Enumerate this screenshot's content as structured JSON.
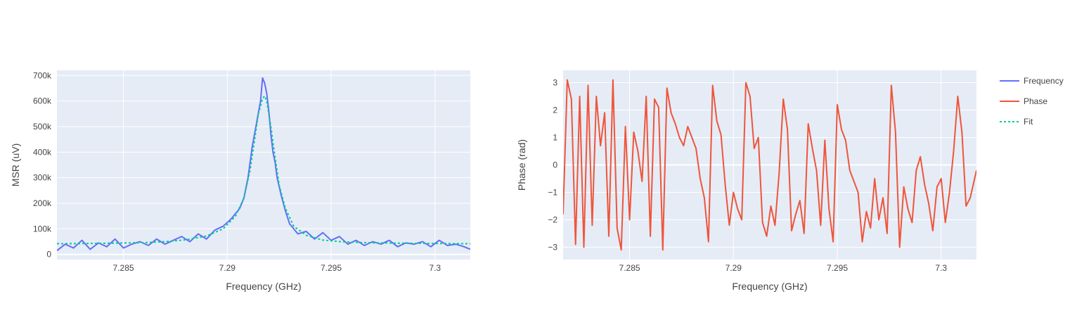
{
  "colors": {
    "plot_bg": "#e5ecf6",
    "grid": "#ffffff",
    "frequency": "#636efa",
    "phase": "#ef553b",
    "fit": "#00cc96",
    "text": "#444444"
  },
  "legend": {
    "placement": "top-right",
    "items": [
      {
        "label": "Frequency",
        "style": "solid",
        "color": "#636efa"
      },
      {
        "label": "Phase",
        "style": "solid",
        "color": "#ef553b"
      },
      {
        "label": "Fit",
        "style": "dotted",
        "color": "#00cc96"
      }
    ]
  },
  "chart_data": [
    {
      "type": "line",
      "xlabel": "Frequency (GHz)",
      "ylabel": "MSR (uV)",
      "xlim": [
        7.2818,
        7.3017
      ],
      "ylim": [
        -20000,
        720000
      ],
      "x_ticks": [
        7.285,
        7.29,
        7.295,
        7.3
      ],
      "x_tick_labels": [
        "7.285",
        "7.29",
        "7.295",
        "7.3"
      ],
      "y_ticks": [
        0,
        100000,
        200000,
        300000,
        400000,
        500000,
        600000,
        700000
      ],
      "y_tick_labels": [
        "0",
        "100k",
        "200k",
        "300k",
        "400k",
        "500k",
        "600k",
        "700k"
      ],
      "grid": true,
      "series": [
        {
          "name": "Frequency",
          "color": "#636efa",
          "x": [
            7.2818,
            7.2822,
            7.2826,
            7.283,
            7.2834,
            7.2838,
            7.2842,
            7.2846,
            7.285,
            7.2854,
            7.2858,
            7.2862,
            7.2866,
            7.287,
            7.2874,
            7.2878,
            7.2882,
            7.2886,
            7.289,
            7.2894,
            7.2898,
            7.2902,
            7.2906,
            7.2908,
            7.291,
            7.2912,
            7.2914,
            7.2916,
            7.2917,
            7.2918,
            7.2919,
            7.292,
            7.2921,
            7.2922,
            7.2923,
            7.2924,
            7.2926,
            7.2928,
            7.293,
            7.2934,
            7.2938,
            7.2942,
            7.2946,
            7.295,
            7.2954,
            7.2958,
            7.2962,
            7.2966,
            7.297,
            7.2974,
            7.2978,
            7.2982,
            7.2986,
            7.299,
            7.2994,
            7.2998,
            7.3002,
            7.3006,
            7.301,
            7.3014,
            7.3017
          ],
          "y": [
            15000,
            40000,
            25000,
            55000,
            20000,
            45000,
            30000,
            60000,
            25000,
            40000,
            50000,
            35000,
            60000,
            40000,
            55000,
            70000,
            50000,
            80000,
            60000,
            95000,
            110000,
            140000,
            180000,
            220000,
            300000,
            420000,
            510000,
            600000,
            690000,
            670000,
            630000,
            560000,
            470000,
            400000,
            360000,
            300000,
            230000,
            170000,
            120000,
            80000,
            90000,
            60000,
            85000,
            55000,
            70000,
            40000,
            55000,
            35000,
            50000,
            40000,
            55000,
            30000,
            45000,
            40000,
            50000,
            30000,
            55000,
            35000,
            40000,
            30000,
            20000
          ]
        },
        {
          "name": "Fit",
          "color": "#00cc96",
          "style": "dotted",
          "x": [
            7.2818,
            7.283,
            7.2845,
            7.286,
            7.287,
            7.288,
            7.289,
            7.2898,
            7.2904,
            7.2908,
            7.2911,
            7.2913,
            7.2915,
            7.2917,
            7.2918,
            7.2919,
            7.2921,
            7.2923,
            7.2925,
            7.2928,
            7.2932,
            7.2938,
            7.2946,
            7.2956,
            7.2966,
            7.298,
            7.2995,
            7.3005,
            7.3017
          ],
          "y": [
            42000,
            42500,
            44000,
            46000,
            50000,
            57000,
            72000,
            100000,
            150000,
            220000,
            330000,
            440000,
            550000,
            610000,
            620000,
            600000,
            500000,
            380000,
            270000,
            180000,
            110000,
            75000,
            56000,
            49000,
            46000,
            44000,
            43000,
            42500,
            42000
          ]
        }
      ]
    },
    {
      "type": "line",
      "xlabel": "Frequency (GHz)",
      "ylabel": "Phase (rad)",
      "xlim": [
        7.2818,
        7.3017
      ],
      "ylim": [
        -3.45,
        3.45
      ],
      "x_ticks": [
        7.285,
        7.29,
        7.295,
        7.3
      ],
      "x_tick_labels": [
        "7.285",
        "7.29",
        "7.295",
        "7.3"
      ],
      "y_ticks": [
        -3,
        -2,
        -1,
        0,
        1,
        2,
        3
      ],
      "y_tick_labels": [
        "−3",
        "−2",
        "−1",
        "0",
        "1",
        "2",
        "3"
      ],
      "grid": true,
      "series": [
        {
          "name": "Phase",
          "color": "#ef553b",
          "x": [
            7.2818,
            7.282,
            7.2822,
            7.2824,
            7.2826,
            7.2828,
            7.283,
            7.2832,
            7.2834,
            7.2836,
            7.2838,
            7.284,
            7.2842,
            7.2844,
            7.2846,
            7.2848,
            7.285,
            7.2852,
            7.2854,
            7.2856,
            7.2858,
            7.286,
            7.2862,
            7.2864,
            7.2866,
            7.2868,
            7.287,
            7.2872,
            7.2874,
            7.2876,
            7.2878,
            7.288,
            7.2882,
            7.2884,
            7.2886,
            7.2888,
            7.289,
            7.2892,
            7.2894,
            7.2896,
            7.2898,
            7.29,
            7.2902,
            7.2904,
            7.2906,
            7.2908,
            7.291,
            7.2912,
            7.2914,
            7.2916,
            7.2918,
            7.292,
            7.2922,
            7.2924,
            7.2926,
            7.2928,
            7.293,
            7.2932,
            7.2934,
            7.2936,
            7.2938,
            7.294,
            7.2942,
            7.2944,
            7.2946,
            7.2948,
            7.295,
            7.2952,
            7.2954,
            7.2956,
            7.2958,
            7.296,
            7.2962,
            7.2964,
            7.2966,
            7.2968,
            7.297,
            7.2972,
            7.2974,
            7.2976,
            7.2978,
            7.298,
            7.2982,
            7.2984,
            7.2986,
            7.2988,
            7.299,
            7.2992,
            7.2994,
            7.2996,
            7.2998,
            7.3,
            7.3002,
            7.3004,
            7.3006,
            7.3008,
            7.301,
            7.3012,
            7.3014,
            7.3017
          ],
          "y": [
            -1.8,
            3.1,
            2.4,
            -2.9,
            2.5,
            -3.0,
            2.9,
            -2.2,
            2.5,
            0.7,
            1.9,
            -2.6,
            3.1,
            -2.3,
            -3.1,
            1.4,
            -2.0,
            1.2,
            0.5,
            -0.6,
            2.5,
            -2.6,
            2.4,
            2.1,
            -3.1,
            2.8,
            1.9,
            1.5,
            1.0,
            0.7,
            1.4,
            1.0,
            0.6,
            -0.5,
            -1.2,
            -2.8,
            2.9,
            1.6,
            1.1,
            -0.7,
            -2.2,
            -1.0,
            -1.6,
            -2.0,
            3.0,
            2.5,
            0.6,
            1.0,
            -2.1,
            -2.6,
            -1.5,
            -2.2,
            -0.3,
            2.4,
            1.3,
            -2.4,
            -1.8,
            -1.3,
            -2.5,
            1.5,
            0.6,
            -0.2,
            -2.2,
            0.9,
            -1.6,
            -2.8,
            2.2,
            1.3,
            0.9,
            -0.2,
            -0.6,
            -1.0,
            -2.8,
            -1.7,
            -2.3,
            -0.5,
            -2.0,
            -1.2,
            -2.5,
            2.9,
            1.2,
            -3.0,
            -0.8,
            -1.6,
            -2.1,
            -0.2,
            0.3,
            -0.7,
            -1.4,
            -2.4,
            -0.8,
            -0.5,
            -2.1,
            -1.0,
            0.5,
            2.5,
            1.2,
            -1.5,
            -1.2,
            -0.2
          ]
        }
      ]
    }
  ]
}
